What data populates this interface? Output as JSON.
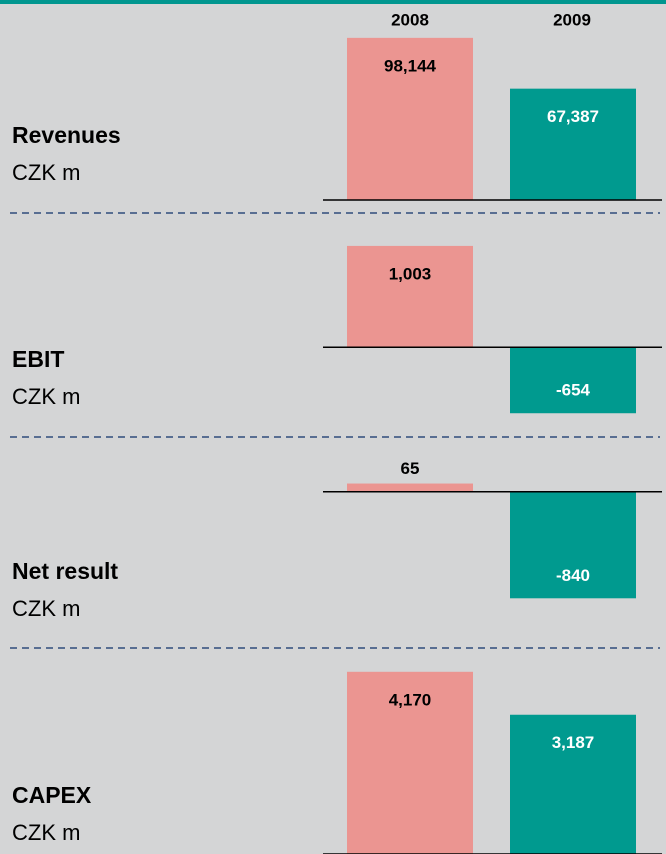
{
  "chart_data": [
    {
      "type": "bar",
      "title": "Revenues",
      "subtitle": "CZK m",
      "categories": [
        "2008",
        "2009"
      ],
      "values": [
        98144,
        67387
      ],
      "value_labels": [
        "98,144",
        "67,387"
      ],
      "colors": [
        "#eb9591",
        "#009a8f"
      ],
      "ylim": [
        0,
        115000
      ]
    },
    {
      "type": "bar",
      "title": "EBIT",
      "subtitle": "CZK m",
      "values": [
        1003,
        -654
      ],
      "value_labels": [
        "1,003",
        "-654"
      ],
      "colors": [
        "#eb9591",
        "#009a8f"
      ],
      "ylim": [
        -820,
        1210
      ]
    },
    {
      "type": "bar",
      "title": "Net result",
      "subtitle": "CZK m",
      "values": [
        65,
        -840
      ],
      "value_labels": [
        "65",
        "-840"
      ],
      "colors": [
        "#eb9591",
        "#009a8f"
      ],
      "ylim": [
        -1090,
        290
      ]
    },
    {
      "type": "bar",
      "title": "CAPEX",
      "subtitle": "CZK m",
      "values": [
        4170,
        3187
      ],
      "value_labels": [
        "4,170",
        "3,187"
      ],
      "colors": [
        "#eb9591",
        "#009a8f"
      ],
      "ylim": [
        0,
        4440
      ]
    }
  ]
}
